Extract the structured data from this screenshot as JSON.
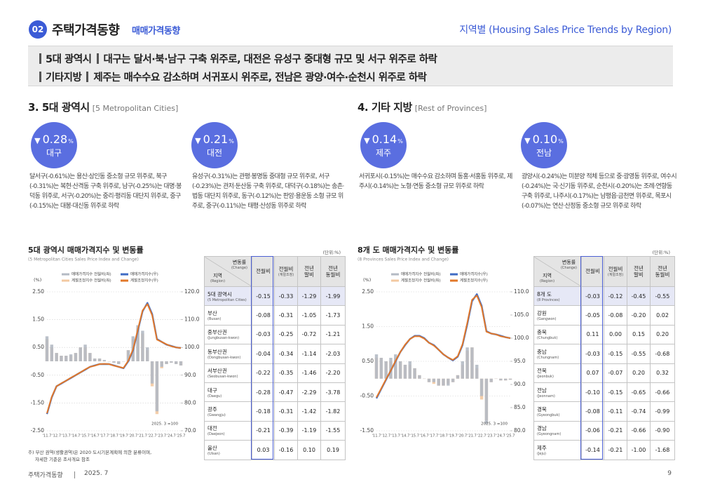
{
  "header": {
    "number": "02",
    "title": "주택가격동향",
    "subtitle": "매매가격동향",
    "right": "지역별 (Housing Sales Price Trends by Region)"
  },
  "summary": [
    {
      "label": "5대 광역시",
      "text": "대구는 달서·북·남구 구축 위주로, 대전은 유성구 중대형 규모 및 서구 위주로 하락"
    },
    {
      "label": "기타지방",
      "text": "제주는 매수수요 감소하며 서귀포시 위주로, 전남은 광양·여수·순천시 위주로 하락"
    }
  ],
  "sections": [
    {
      "title": "3. 5대 광역시",
      "title_en": "[5 Metropolitan Cities]",
      "highlights": [
        {
          "arrow": "▼",
          "value": "0.28",
          "unit": "%",
          "region": "대구",
          "text": "달서구(-0.61%)는 용산·상인동 중소형 규모 위주로, 북구(-0.31%)는 복현·산격동 구축 위주로, 남구(-0.25%)는 대명·봉덕동 위주로, 서구(-0.20%)는 중리·평리동 대단지 위주로, 중구(-0.15%)는 대봉·대신동 위주로 하락"
        },
        {
          "arrow": "▼",
          "value": "0.21",
          "unit": "%",
          "region": "대전",
          "text": "유성구(-0.31%)는 관평·봉명동 중대형 규모 위주로, 서구(-0.23%)는 관저·둔산동 구축 위주로, 대덕구(-0.18%)는 송촌·법동 대단지 위주로, 동구(-0.12%)는 판암·용운동 소형 규모 위주로, 중구(-0.11%)는 태평·산성동 위주로 하락"
        }
      ],
      "chart": {
        "title": "5대 광역시 매매가격지수 및 변동률",
        "subtitle": "(5 Metropolitan Cities Sales Price Index and Change)",
        "unit": "(단위:%)",
        "ylabel": "(%)",
        "note": "2025. 3 =100",
        "categories": [
          "'11.7",
          null,
          "'12.7",
          null,
          "'13.7",
          null,
          "'14.7",
          null,
          "'15.7",
          null,
          "'16.7",
          null,
          "'17.7",
          null,
          "'18.7",
          null,
          "'19.7",
          null,
          "'20.7",
          null,
          "'21.7",
          null,
          "'22.7",
          null,
          "'23.7",
          null,
          "'24.7",
          null,
          "'25.7"
        ],
        "ylim": [
          -2.5,
          2.5
        ],
        "yticks": [
          {
            "value": 2.5,
            "label": "2.50"
          },
          {
            "value": 1.5,
            "label": "1.50"
          },
          {
            "value": 0.5,
            "label": "0.50"
          },
          {
            "value": -0.5,
            "label": "-0.50"
          },
          {
            "value": -1.5,
            "label": "-1.50"
          },
          {
            "value": -2.5,
            "label": "-2.50"
          }
        ],
        "y2lim": [
          70,
          120
        ],
        "y2ticks": [
          {
            "value": 120,
            "label": "120.0"
          },
          {
            "value": 110,
            "label": "110.0"
          },
          {
            "value": 100,
            "label": "100.0"
          },
          {
            "value": 90,
            "label": "90.0"
          },
          {
            "value": 80,
            "label": "80.0"
          },
          {
            "value": 70,
            "label": "70.0"
          }
        ],
        "series": [
          {
            "name": "매매가격지수 전월비(좌)",
            "type": "bar",
            "axis": "y",
            "color": "#b4bac4",
            "values": [
              0.9,
              0.6,
              0.3,
              0.2,
              0.2,
              0.25,
              0.3,
              0.5,
              0.6,
              0.3,
              0.1,
              0.1,
              0.05,
              0.0,
              -0.05,
              -0.1,
              0.0,
              0.4,
              0.9,
              1.3,
              1.1,
              0.5,
              -0.8,
              -1.8,
              -0.2,
              -0.1,
              -0.05,
              -0.1,
              -0.15
            ]
          },
          {
            "name": "매매가격지수(우)",
            "type": "line",
            "axis": "y2",
            "color": "#3f6bc4",
            "values": [
              76,
              82,
              86,
              87,
              88,
              89,
              90,
              91,
              92,
              93,
              93.5,
              94,
              94,
              94,
              93.5,
              93,
              92.5,
              95,
              99,
              106,
              113,
              116,
              112,
              103,
              102,
              101,
              100.5,
              100,
              99.8
            ]
          },
          {
            "name": "계절조정지수 전월비(좌)",
            "type": "bar",
            "axis": "y",
            "color": "#f3c9a1",
            "values": [
              0.8,
              0.5,
              0.3,
              0.2,
              0.2,
              0.2,
              0.3,
              0.5,
              0.5,
              0.3,
              0.1,
              0.1,
              0.0,
              0.0,
              -0.05,
              -0.1,
              0.0,
              0.4,
              0.8,
              1.2,
              1.0,
              0.4,
              -0.9,
              -1.9,
              -0.25,
              -0.1,
              -0.05,
              -0.1,
              -0.15
            ]
          },
          {
            "name": "계절조정지수(우)",
            "type": "line",
            "axis": "y2",
            "color": "#e2782a",
            "values": [
              76.3,
              82.2,
              86,
              87.1,
              88,
              89.1,
              90,
              91,
              92.1,
              93,
              93.4,
              94,
              94.1,
              94,
              93.4,
              93,
              92.6,
              95.2,
              99.3,
              106.4,
              113.3,
              115.6,
              111.6,
              102.8,
              102,
              101.1,
              100.4,
              100,
              99.8
            ]
          }
        ]
      },
      "table": {
        "corner_top": [
          "변동률",
          "(Change)"
        ],
        "corner_bottom": [
          "지역",
          "(Region)"
        ],
        "columns": [
          [
            "전월비"
          ],
          [
            "전월비",
            "(계절조정)"
          ],
          [
            "전년",
            "말비"
          ],
          [
            "전년",
            "동월비"
          ]
        ],
        "rows": [
          {
            "name": "5대 광역시",
            "name_en": "(5 Metropolitan Cities)",
            "values": [
              "-0.15",
              "-0.33",
              "-1.29",
              "-1.99"
            ]
          },
          {
            "name": "부산",
            "name_en": "(Busan)",
            "values": [
              "-0.08",
              "-0.31",
              "-1.05",
              "-1.73"
            ]
          },
          {
            "name": "중부산권",
            "name_en": "(Jungbusan-kwon)",
            "values": [
              "-0.03",
              "-0.25",
              "-0.72",
              "-1.21"
            ]
          },
          {
            "name": "동부산권",
            "name_en": "(Dongbusan-kwon)",
            "values": [
              "-0.04",
              "-0.34",
              "-1.14",
              "-2.03"
            ]
          },
          {
            "name": "서부산권",
            "name_en": "(Seobusan-kwon)",
            "values": [
              "-0.22",
              "-0.35",
              "-1.46",
              "-2.20"
            ]
          },
          {
            "name": "대구",
            "name_en": "(Daegu)",
            "values": [
              "-0.28",
              "-0.47",
              "-2.29",
              "-3.78"
            ]
          },
          {
            "name": "광주",
            "name_en": "(Gwangju)",
            "values": [
              "-0.18",
              "-0.31",
              "-1.42",
              "-1.82"
            ]
          },
          {
            "name": "대전",
            "name_en": "(Daejeon)",
            "values": [
              "-0.21",
              "-0.39",
              "-1.19",
              "-1.55"
            ]
          },
          {
            "name": "울산",
            "name_en": "(Ulsan)",
            "values": [
              "0.03",
              "-0.16",
              "0.10",
              "0.19"
            ]
          }
        ]
      },
      "footnote": [
        "주) 부산 권역(생활권역)은 2020 도시기본계획에 의한 분류이며,",
        "자세한 기준은 조사개요 참조"
      ]
    },
    {
      "title": "4. 기타 지방",
      "title_en": "[Rest of Provinces]",
      "highlights": [
        {
          "arrow": "▼",
          "value": "0.14",
          "unit": "%",
          "region": "제주",
          "text": "서귀포시(-0.15%)는 매수수요 감소하며 동홍·서홍동 위주로, 제주시(-0.14%)는 노형·연동 중소형 규모 위주로 하락"
        },
        {
          "arrow": "▼",
          "value": "0.10",
          "unit": "%",
          "region": "전남",
          "text": "광양시(-0.24%)는 미분양 적체 등으로 중·광영동 위주로, 여수시(-0.24%)는 국·신기동 위주로, 순천시(-0.20%)는 조례·연향동 구축 위주로, 나주시(-0.17%)는 남평읍·금천면 위주로, 목포시(-0.07%)는 연산·산정동 중소형 규모 위주로 하락"
        }
      ],
      "chart": {
        "title": "8개 도 매매가격지수 및 변동률",
        "subtitle": "(8 Provinces Sales Price Index and Change)",
        "unit": "(단위:%)",
        "ylabel": "(%)",
        "note": "2025. 3 =100",
        "categories": [
          "'11.7",
          null,
          "'12.7",
          null,
          "'13.7",
          null,
          "'14.7",
          null,
          "'15.7",
          null,
          "'16.7",
          null,
          "'17.7",
          null,
          "'18.7",
          null,
          "'19.7",
          null,
          "'20.7",
          null,
          "'21.7",
          null,
          "'22.7",
          null,
          "'23.7",
          null,
          "'24.7",
          null,
          "'25.7"
        ],
        "ylim": [
          -1.5,
          2.5
        ],
        "yticks": [
          {
            "value": 2.5,
            "label": "2.50"
          },
          {
            "value": 1.5,
            "label": "1.50"
          },
          {
            "value": 0.5,
            "label": "0.50"
          },
          {
            "value": -0.5,
            "label": "-0.50"
          },
          {
            "value": -1.5,
            "label": "-1.50"
          }
        ],
        "y2lim": [
          80,
          110
        ],
        "y2ticks": [
          {
            "value": 110,
            "label": "110.0"
          },
          {
            "value": 105,
            "label": "105.0"
          },
          {
            "value": 100,
            "label": "100.0"
          },
          {
            "value": 95,
            "label": "95.0"
          },
          {
            "value": 90,
            "label": "90.0"
          },
          {
            "value": 85,
            "label": "85.0"
          },
          {
            "value": 80,
            "label": "80.0"
          }
        ],
        "series": [
          {
            "name": "매매가격지수 전월비(좌)",
            "type": "bar",
            "axis": "y",
            "color": "#b4bac4",
            "values": [
              0.7,
              0.6,
              0.5,
              0.6,
              0.7,
              0.5,
              0.4,
              0.5,
              0.3,
              0.1,
              0.0,
              -0.1,
              -0.1,
              -0.2,
              -0.2,
              -0.2,
              -0.1,
              0.1,
              0.5,
              0.9,
              0.9,
              0.4,
              -0.5,
              -1.3,
              -0.1,
              0.0,
              -0.05,
              -0.05,
              -0.03
            ]
          },
          {
            "name": "매매가격지수(우)",
            "type": "line",
            "axis": "y2",
            "color": "#3f6bc4",
            "values": [
              87,
              89,
              91,
              93,
              95,
              97,
              98.5,
              99.8,
              100.5,
              100.5,
              100,
              99,
              98.5,
              97.5,
              96.5,
              95.8,
              95.2,
              96,
              98.5,
              103,
              108,
              109.5,
              107,
              101.5,
              101,
              100.8,
              100.5,
              100.2,
              100
            ]
          },
          {
            "name": "계절조정지수 전월비(좌)",
            "type": "bar",
            "axis": "y",
            "color": "#f3c9a1",
            "values": [
              0.6,
              0.6,
              0.5,
              0.5,
              0.6,
              0.5,
              0.4,
              0.4,
              0.3,
              0.1,
              0.0,
              -0.1,
              -0.15,
              -0.2,
              -0.2,
              -0.15,
              -0.1,
              0.1,
              0.4,
              0.8,
              0.9,
              0.3,
              -0.6,
              -1.2,
              -0.1,
              0.0,
              -0.05,
              -0.05,
              -0.03
            ]
          },
          {
            "name": "계절조정지수(우)",
            "type": "line",
            "axis": "y2",
            "color": "#e2782a",
            "values": [
              87.2,
              89.1,
              91.1,
              93,
              95.1,
              97,
              98.6,
              99.8,
              100.4,
              100.4,
              99.9,
              99,
              98.4,
              97.5,
              96.5,
              95.8,
              95.3,
              96.1,
              98.7,
              103.3,
              108.3,
              109.2,
              106.7,
              101.4,
              101,
              100.8,
              100.4,
              100.2,
              100
            ]
          }
        ]
      },
      "table": {
        "corner_top": [
          "변동률",
          "(Change)"
        ],
        "corner_bottom": [
          "지역",
          "(Region)"
        ],
        "columns": [
          [
            "전월비"
          ],
          [
            "전월비",
            "(계절조정)"
          ],
          [
            "전년",
            "말비"
          ],
          [
            "전년",
            "동월비"
          ]
        ],
        "rows": [
          {
            "name": "8개 도",
            "name_en": "(8 Provinces)",
            "values": [
              "-0.03",
              "-0.12",
              "-0.45",
              "-0.55"
            ]
          },
          {
            "name": "강원",
            "name_en": "(Gangwon)",
            "values": [
              "-0.05",
              "-0.08",
              "-0.20",
              "0.02"
            ]
          },
          {
            "name": "충북",
            "name_en": "(Chungbuk)",
            "values": [
              "0.11",
              "0.00",
              "0.15",
              "0.20"
            ]
          },
          {
            "name": "충남",
            "name_en": "(Chungnam)",
            "values": [
              "-0.03",
              "-0.15",
              "-0.55",
              "-0.68"
            ]
          },
          {
            "name": "전북",
            "name_en": "(Jeonbuk)",
            "values": [
              "0.07",
              "-0.07",
              "0.20",
              "0.32"
            ]
          },
          {
            "name": "전남",
            "name_en": "(Jeonnam)",
            "values": [
              "-0.10",
              "-0.15",
              "-0.65",
              "-0.66"
            ]
          },
          {
            "name": "경북",
            "name_en": "(Gyeongbuk)",
            "values": [
              "-0.08",
              "-0.11",
              "-0.74",
              "-0.99"
            ]
          },
          {
            "name": "경남",
            "name_en": "(Gyeongnam)",
            "values": [
              "-0.06",
              "-0.21",
              "-0.66",
              "-0.90"
            ]
          },
          {
            "name": "제주",
            "name_en": "(Jeju)",
            "values": [
              "-0.14",
              "-0.21",
              "-1.00",
              "-1.68"
            ]
          }
        ]
      }
    }
  ],
  "footer": {
    "left": "주택가격동향",
    "date": "2025. 7",
    "page": "9"
  }
}
